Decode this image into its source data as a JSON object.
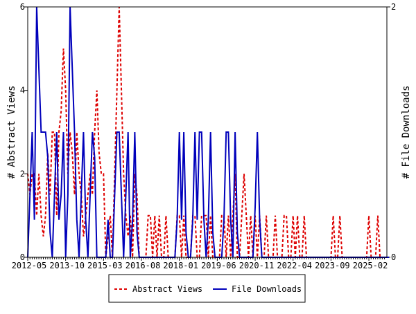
{
  "chart_data": {
    "type": "line",
    "title": "",
    "xlabel": "",
    "ylabel": "# Abstract Views",
    "y2label": "# File Downloads",
    "x_start": "2012-05",
    "x_step": "month",
    "x_tick_labels": [
      "2012-05",
      "2013-10",
      "2015-03",
      "2016-08",
      "2018-01",
      "2019-06",
      "2020-11",
      "2022-04",
      "2023-09",
      "2025-02"
    ],
    "y_ticks": [
      "0",
      "2",
      "4",
      "6"
    ],
    "y2_ticks": [
      "0",
      "2"
    ],
    "ylim": [
      0,
      6
    ],
    "y2lim": [
      0,
      2
    ],
    "grid": false,
    "legend_position": "bottom",
    "series": [
      {
        "name": "Abstract Views",
        "axis": "left",
        "color": "#dd0000",
        "style": "dashed",
        "values": [
          2,
          1.5,
          2,
          2,
          1,
          2,
          1,
          0.5,
          1,
          2.5,
          1.5,
          3,
          3,
          1,
          3,
          3.5,
          5,
          4,
          2,
          3,
          2.5,
          1.5,
          3,
          2,
          1.5,
          0.5,
          1,
          1.5,
          2,
          1.5,
          3,
          4,
          2.5,
          2,
          2,
          0,
          0.5,
          1,
          0,
          2,
          4,
          6,
          4,
          2,
          1,
          0.5,
          1,
          0,
          2,
          1.5,
          0,
          0,
          0,
          0,
          1,
          1,
          0,
          1,
          0,
          1,
          0,
          0,
          1,
          0,
          0,
          0,
          0,
          1,
          1,
          0,
          1,
          0,
          0,
          0,
          1,
          1,
          0,
          0,
          1,
          1,
          1,
          0,
          1,
          0,
          0,
          0,
          0,
          1,
          1,
          0,
          1,
          0,
          1,
          2,
          0,
          0,
          1,
          2,
          1,
          0,
          1,
          0,
          1,
          0,
          1,
          0,
          0,
          1,
          0,
          0,
          0,
          1,
          0,
          0,
          0,
          1,
          1,
          0,
          0,
          1,
          0,
          1,
          0,
          0,
          1,
          0,
          0,
          0,
          0,
          0,
          0,
          0,
          0,
          0,
          0,
          0,
          0,
          1,
          0,
          0,
          1,
          0,
          0,
          0,
          0,
          0,
          0,
          0,
          0,
          0,
          0,
          0,
          0,
          1,
          0,
          0,
          0,
          1,
          0,
          0,
          0
        ]
      },
      {
        "name": "File Downloads",
        "axis": "right",
        "color": "#0000bb",
        "style": "solid",
        "values": [
          0,
          0.5,
          1,
          0.3,
          2,
          1.5,
          1,
          1,
          1,
          0.8,
          0.2,
          0,
          0.5,
          1,
          0.3,
          0.5,
          1,
          0,
          0.5,
          2,
          1.5,
          1,
          0.3,
          0,
          0.5,
          1,
          0.3,
          0,
          0.5,
          1,
          0.8,
          0,
          0,
          0,
          0,
          0,
          0.3,
          0,
          0,
          0.5,
          1,
          1,
          0.5,
          0,
          0.5,
          1,
          0,
          0.3,
          1,
          0.2,
          0,
          0,
          0,
          0,
          0,
          0,
          0,
          0,
          0,
          0,
          0,
          0,
          0,
          0,
          0,
          0,
          0,
          0.3,
          1,
          0.3,
          1,
          0.2,
          0,
          0,
          0.3,
          1,
          0.3,
          1,
          1,
          0.3,
          0,
          0.3,
          1,
          0.2,
          0,
          0,
          0,
          0,
          0.3,
          1,
          1,
          0.3,
          0,
          1,
          0.2,
          0,
          0,
          0,
          0,
          0,
          0,
          0,
          0.4,
          1,
          0.3,
          0,
          0,
          0,
          0,
          0,
          0,
          0,
          0,
          0,
          0,
          0,
          0,
          0,
          0,
          0,
          0,
          0,
          0,
          0,
          0,
          0,
          0,
          0,
          0,
          0,
          0,
          0,
          0,
          0,
          0,
          0,
          0,
          0,
          0,
          0,
          0,
          0,
          0,
          0,
          0,
          0,
          0,
          0,
          0,
          0,
          0,
          0,
          0,
          0,
          0,
          0,
          0,
          0,
          0,
          0,
          0,
          0,
          0
        ]
      }
    ]
  }
}
